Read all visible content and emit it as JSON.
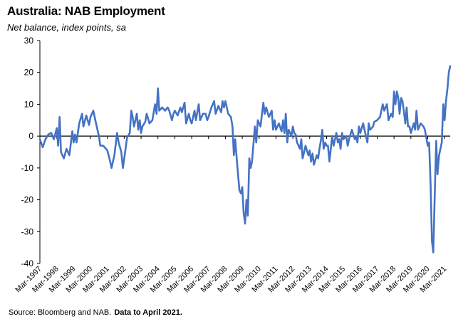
{
  "header": {
    "title": "Australia: NAB Employment",
    "subtitle": "Net balance, index points, sa"
  },
  "footer": {
    "source": "Source: Bloomberg and NAB.",
    "note": "Data to April 2021."
  },
  "colors": {
    "line": "#4472C4",
    "axis": "#000000",
    "tick_text": "#000000"
  },
  "chart_data": {
    "type": "line",
    "title": "Australia: NAB Employment",
    "subtitle": "Net balance, index points, sa",
    "xlabel": "",
    "ylabel": "",
    "ylim": [
      -40,
      30
    ],
    "yticks": [
      30,
      20,
      10,
      0,
      -10,
      -20,
      -30,
      -40
    ],
    "xlim": [
      1997.0,
      2021.33
    ],
    "xtick_labels": [
      "Mar-1997",
      "Mar-1998",
      "Mar-1999",
      "Mar-2000",
      "Mar-2001",
      "Mar-2002",
      "Mar-2003",
      "Mar-2004",
      "Mar-2005",
      "Mar-2006",
      "Mar-2007",
      "Mar-2008",
      "Mar-2009",
      "Mar-2010",
      "Mar-2011",
      "Mar-2012",
      "Mar-2013",
      "Mar-2014",
      "Mar-2015",
      "Mar-2016",
      "Mar-2017",
      "Mar-2018",
      "Mar-2019",
      "Mar-2020",
      "Mar-2021"
    ],
    "grid": false,
    "legend": "none",
    "series": [
      {
        "points": [
          [
            1997.0,
            -1
          ],
          [
            1997.17,
            -3.5
          ],
          [
            1997.33,
            -1
          ],
          [
            1997.5,
            0.5
          ],
          [
            1997.67,
            1
          ],
          [
            1997.83,
            -1
          ],
          [
            1998.0,
            2.5
          ],
          [
            1998.08,
            -3
          ],
          [
            1998.17,
            6
          ],
          [
            1998.25,
            -5
          ],
          [
            1998.42,
            -7
          ],
          [
            1998.58,
            -4
          ],
          [
            1998.75,
            -6
          ],
          [
            1998.92,
            1.5
          ],
          [
            1999.0,
            -2
          ],
          [
            1999.08,
            0.5
          ],
          [
            1999.17,
            -2
          ],
          [
            1999.33,
            4
          ],
          [
            1999.5,
            7
          ],
          [
            1999.58,
            3
          ],
          [
            1999.75,
            6.5
          ],
          [
            1999.92,
            3.5
          ],
          [
            2000.0,
            6
          ],
          [
            2000.17,
            8
          ],
          [
            2000.33,
            4
          ],
          [
            2000.5,
            0
          ],
          [
            2000.58,
            -3
          ],
          [
            2000.75,
            -3
          ],
          [
            2000.92,
            -4
          ],
          [
            2001.0,
            -4.5
          ],
          [
            2001.17,
            -8
          ],
          [
            2001.25,
            -10
          ],
          [
            2001.42,
            -6
          ],
          [
            2001.58,
            1
          ],
          [
            2001.67,
            -2
          ],
          [
            2001.83,
            -5
          ],
          [
            2001.92,
            -10
          ],
          [
            2002.0,
            -7
          ],
          [
            2002.17,
            -0.5
          ],
          [
            2002.33,
            1
          ],
          [
            2002.42,
            8
          ],
          [
            2002.5,
            6
          ],
          [
            2002.58,
            3
          ],
          [
            2002.75,
            7
          ],
          [
            2002.83,
            2
          ],
          [
            2002.92,
            5
          ],
          [
            2003.0,
            1
          ],
          [
            2003.08,
            3
          ],
          [
            2003.25,
            4.5
          ],
          [
            2003.33,
            7
          ],
          [
            2003.5,
            4
          ],
          [
            2003.67,
            5
          ],
          [
            2003.83,
            10
          ],
          [
            2003.92,
            7
          ],
          [
            2004.0,
            15
          ],
          [
            2004.08,
            8
          ],
          [
            2004.25,
            9
          ],
          [
            2004.42,
            8
          ],
          [
            2004.58,
            9
          ],
          [
            2004.67,
            8
          ],
          [
            2004.83,
            5
          ],
          [
            2004.92,
            7
          ],
          [
            2005.0,
            8
          ],
          [
            2005.17,
            6.5
          ],
          [
            2005.33,
            9
          ],
          [
            2005.42,
            7.5
          ],
          [
            2005.58,
            10.5
          ],
          [
            2005.67,
            4
          ],
          [
            2005.83,
            7
          ],
          [
            2005.92,
            5
          ],
          [
            2006.0,
            4
          ],
          [
            2006.17,
            8
          ],
          [
            2006.25,
            5
          ],
          [
            2006.42,
            10
          ],
          [
            2006.5,
            5
          ],
          [
            2006.67,
            7
          ],
          [
            2006.83,
            7
          ],
          [
            2006.92,
            5
          ],
          [
            2007.0,
            6
          ],
          [
            2007.17,
            9
          ],
          [
            2007.33,
            11
          ],
          [
            2007.42,
            7
          ],
          [
            2007.58,
            9.5
          ],
          [
            2007.75,
            7.5
          ],
          [
            2007.83,
            11
          ],
          [
            2007.92,
            9
          ],
          [
            2008.0,
            11
          ],
          [
            2008.17,
            7
          ],
          [
            2008.33,
            6
          ],
          [
            2008.42,
            3
          ],
          [
            2008.5,
            -6
          ],
          [
            2008.58,
            -1
          ],
          [
            2008.67,
            -7
          ],
          [
            2008.83,
            -17
          ],
          [
            2008.92,
            -18
          ],
          [
            2009.0,
            -16
          ],
          [
            2009.08,
            -24
          ],
          [
            2009.17,
            -27.5
          ],
          [
            2009.25,
            -20
          ],
          [
            2009.33,
            -25
          ],
          [
            2009.42,
            -7
          ],
          [
            2009.5,
            -10
          ],
          [
            2009.58,
            -8
          ],
          [
            2009.75,
            3
          ],
          [
            2009.83,
            -2
          ],
          [
            2009.92,
            5
          ],
          [
            2010.08,
            3
          ],
          [
            2010.25,
            10.5
          ],
          [
            2010.33,
            7
          ],
          [
            2010.42,
            9
          ],
          [
            2010.58,
            6
          ],
          [
            2010.75,
            8
          ],
          [
            2010.83,
            2
          ],
          [
            2010.92,
            5
          ],
          [
            2011.0,
            2
          ],
          [
            2011.17,
            4
          ],
          [
            2011.33,
            1.5
          ],
          [
            2011.42,
            5
          ],
          [
            2011.5,
            1
          ],
          [
            2011.58,
            7
          ],
          [
            2011.67,
            -2
          ],
          [
            2011.75,
            2
          ],
          [
            2011.92,
            0
          ],
          [
            2012.0,
            3
          ],
          [
            2012.08,
            1
          ],
          [
            2012.17,
            0.5
          ],
          [
            2012.25,
            -2
          ],
          [
            2012.42,
            -4
          ],
          [
            2012.5,
            -1
          ],
          [
            2012.58,
            -7
          ],
          [
            2012.67,
            -5
          ],
          [
            2012.75,
            -3
          ],
          [
            2012.92,
            -6
          ],
          [
            2013.0,
            -4.5
          ],
          [
            2013.08,
            -8
          ],
          [
            2013.17,
            -5.5
          ],
          [
            2013.25,
            -9
          ],
          [
            2013.42,
            -6
          ],
          [
            2013.5,
            -7
          ],
          [
            2013.58,
            -4
          ],
          [
            2013.67,
            -1
          ],
          [
            2013.75,
            2
          ],
          [
            2013.83,
            -4
          ],
          [
            2013.92,
            -2
          ],
          [
            2014.0,
            -3
          ],
          [
            2014.08,
            -3
          ],
          [
            2014.17,
            -8
          ],
          [
            2014.33,
            0
          ],
          [
            2014.42,
            -3
          ],
          [
            2014.58,
            1
          ],
          [
            2014.67,
            -2
          ],
          [
            2014.75,
            -1
          ],
          [
            2014.83,
            -4
          ],
          [
            2014.92,
            1
          ],
          [
            2015.0,
            -1
          ],
          [
            2015.17,
            0
          ],
          [
            2015.25,
            -3
          ],
          [
            2015.33,
            -1
          ],
          [
            2015.5,
            2
          ],
          [
            2015.67,
            -1
          ],
          [
            2015.75,
            0
          ],
          [
            2015.83,
            -2
          ],
          [
            2015.92,
            3
          ],
          [
            2016.0,
            1
          ],
          [
            2016.17,
            4
          ],
          [
            2016.25,
            2
          ],
          [
            2016.42,
            -2
          ],
          [
            2016.5,
            4
          ],
          [
            2016.58,
            2
          ],
          [
            2016.75,
            3
          ],
          [
            2016.83,
            4.5
          ],
          [
            2017.0,
            5
          ],
          [
            2017.17,
            6
          ],
          [
            2017.33,
            10
          ],
          [
            2017.42,
            8
          ],
          [
            2017.58,
            10
          ],
          [
            2017.67,
            5
          ],
          [
            2017.83,
            7
          ],
          [
            2017.92,
            6
          ],
          [
            2018.0,
            14
          ],
          [
            2018.08,
            10
          ],
          [
            2018.17,
            14
          ],
          [
            2018.25,
            12
          ],
          [
            2018.33,
            7
          ],
          [
            2018.42,
            12
          ],
          [
            2018.5,
            11
          ],
          [
            2018.58,
            8
          ],
          [
            2018.67,
            4
          ],
          [
            2018.75,
            9
          ],
          [
            2018.83,
            3
          ],
          [
            2018.92,
            3
          ],
          [
            2019.0,
            1
          ],
          [
            2019.17,
            4
          ],
          [
            2019.25,
            2
          ],
          [
            2019.33,
            8
          ],
          [
            2019.42,
            2
          ],
          [
            2019.58,
            4
          ],
          [
            2019.75,
            3
          ],
          [
            2019.83,
            2
          ],
          [
            2020.0,
            -3
          ],
          [
            2020.08,
            -2
          ],
          [
            2020.17,
            -15
          ],
          [
            2020.25,
            -33
          ],
          [
            2020.33,
            -36.5
          ],
          [
            2020.42,
            -17
          ],
          [
            2020.5,
            -1.5
          ],
          [
            2020.58,
            -12
          ],
          [
            2020.67,
            -6
          ],
          [
            2020.75,
            -4
          ],
          [
            2020.83,
            -2
          ],
          [
            2020.92,
            10
          ],
          [
            2021.0,
            5
          ],
          [
            2021.08,
            11
          ],
          [
            2021.17,
            15
          ],
          [
            2021.25,
            20
          ],
          [
            2021.33,
            22
          ]
        ]
      }
    ]
  }
}
